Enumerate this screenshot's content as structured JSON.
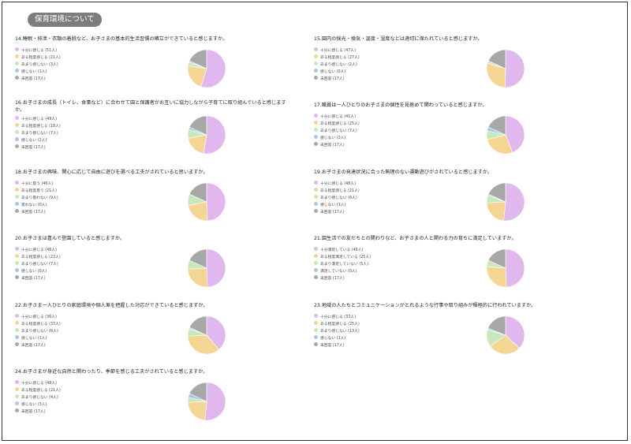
{
  "section_title": "保育環境について",
  "colors": [
    "#e1b8ee",
    "#f4d594",
    "#c8e8bc",
    "#a6c8ec",
    "#a8a8a8"
  ],
  "chart_data": [
    {
      "type": "pie",
      "title": "14.睡眠・排泄・衣類の着脱など、お子さまの基本的生活習慣の確立ができていると感じますか。",
      "categories": [
        "十分に感じる",
        "ある程度感じる",
        "あまり感じない",
        "感じない",
        "未回答"
      ],
      "labels": [
        "十分に感じる (51人)",
        "ある程度感じる (21人)",
        "あまり感じない (3人)",
        "感じない (1人)",
        "未回答 (17人)"
      ],
      "values": [
        51,
        21,
        3,
        1,
        17
      ]
    },
    {
      "type": "pie",
      "title": "15.園内の採光・換気・温度・湿度などは適切に保たれていると感じますか。",
      "categories": [
        "十分に感じる",
        "ある程度感じる",
        "あまり感じない",
        "感じない",
        "未回答"
      ],
      "labels": [
        "十分に感じる (47人)",
        "ある程度感じる (27人)",
        "あまり感じない (2人)",
        "感じない (0人)",
        "未回答 (17人)"
      ],
      "values": [
        47,
        27,
        2,
        0,
        17
      ]
    },
    {
      "type": "pie",
      "title": "16.お子さまの成長（トイレ、食事など）に合わせて園と保護者がお互いに協力しながら子育てに取り組んでいると感じますか。",
      "categories": [
        "十分に感じる",
        "ある程度感じる",
        "あまり感じない",
        "感じない",
        "未回答"
      ],
      "labels": [
        "十分に感じる (49人)",
        "ある程度感じる (18人)",
        "あまり感じない (7人)",
        "感じない (2人)",
        "未回答 (17人)"
      ],
      "values": [
        49,
        18,
        7,
        2,
        17
      ]
    },
    {
      "type": "pie",
      "title": "17.職員は一人ひとりのお子さまの個性を見極めて関わっていると感じますか。",
      "categories": [
        "十分に感じる",
        "ある程度感じる",
        "あまり感じない",
        "感じない",
        "未回答"
      ],
      "labels": [
        "十分に感じる (41人)",
        "ある程度感じる (25人)",
        "あまり感じない (7人)",
        "感じない (3人)",
        "未回答 (17人)"
      ],
      "values": [
        41,
        25,
        7,
        3,
        17
      ]
    },
    {
      "type": "pie",
      "title": "18.お子さまの興味、関心に応じて自由に遊びを選べる工夫がされていると思いますか。",
      "categories": [
        "十分に思う",
        "ある程度思う",
        "あまり思わない",
        "思わない",
        "未回答"
      ],
      "labels": [
        "十分に思う (46人)",
        "ある程度思う (21人)",
        "あまり思わない (9人)",
        "思わない (0人)",
        "未回答 (17人)"
      ],
      "values": [
        46,
        21,
        9,
        0,
        17
      ]
    },
    {
      "type": "pie",
      "title": "19.お子さまの発達状況に合った無理のない運動遊びがされていると感じますか。",
      "categories": [
        "十分に感じる",
        "ある程度感じる",
        "あまり感じない",
        "感じない",
        "未回答"
      ],
      "labels": [
        "十分に感じる (48人)",
        "ある程度感じる (21人)",
        "あまり感じない (6人)",
        "感じない (1人)",
        "未回答 (17人)"
      ],
      "values": [
        48,
        21,
        6,
        1,
        17
      ]
    },
    {
      "type": "pie",
      "title": "20.お子さまは喜んで登園していると感じますか。",
      "categories": [
        "十分に感じる",
        "ある程度感じる",
        "あまり感じない",
        "感じない",
        "未回答"
      ],
      "labels": [
        "十分に感じる (46人)",
        "ある程度感じる (23人)",
        "あまり感じない (7人)",
        "感じない (0人)",
        "未回答 (17人)"
      ],
      "values": [
        46,
        23,
        7,
        0,
        17
      ]
    },
    {
      "type": "pie",
      "title": "21.園生活での友だちとの関わりなど、お子さまの人と関わる力の育ちに満足していますか。",
      "categories": [
        "十分満足している",
        "ある程度満足している",
        "あまり満足していない",
        "満足していない",
        "未回答"
      ],
      "labels": [
        "十分満足している (46人)",
        "ある程度満足している (25人)",
        "あまり満足していない (5人)",
        "満足していない (0人)",
        "未回答 (17人)"
      ],
      "values": [
        46,
        25,
        5,
        0,
        17
      ]
    },
    {
      "type": "pie",
      "title": "22.お子さま一人ひとりの家庭環境や個人差を把握した対応ができていると感じますか。",
      "categories": [
        "十分に感じる",
        "ある程度感じる",
        "あまり感じない",
        "感じない",
        "未回答"
      ],
      "labels": [
        "十分に感じる (36人)",
        "ある程度感じる (33人)",
        "あまり感じない (6人)",
        "感じない (1人)",
        "未回答 (17人)"
      ],
      "values": [
        36,
        33,
        6,
        1,
        17
      ]
    },
    {
      "type": "pie",
      "title": "23.地域の人たちとコミュニケーションがとれるような行事や取り組みが積極的に行われていますか。",
      "categories": [
        "十分に感じる",
        "ある程度感じる",
        "あまり感じない",
        "感じない",
        "未回答"
      ],
      "labels": [
        "十分に感じる (33人)",
        "ある程度感じる (25人)",
        "あまり感じない (13人)",
        "感じない (1人)",
        "未回答 (17人)"
      ],
      "values": [
        33,
        25,
        13,
        1,
        17
      ]
    },
    {
      "type": "pie",
      "title": "24.お子さまが身近な自然と関わったり、季節を感じる工夫がされていると感じますか。",
      "categories": [
        "十分に感じる",
        "ある程度感じる",
        "あまり感じない",
        "感じない",
        "未回答"
      ],
      "labels": [
        "十分に感じる (48人)",
        "ある程度感じる (21人)",
        "あまり感じない (4人)",
        "感じない (3人)",
        "未回答 (17人)"
      ],
      "values": [
        48,
        21,
        4,
        3,
        17
      ]
    }
  ]
}
